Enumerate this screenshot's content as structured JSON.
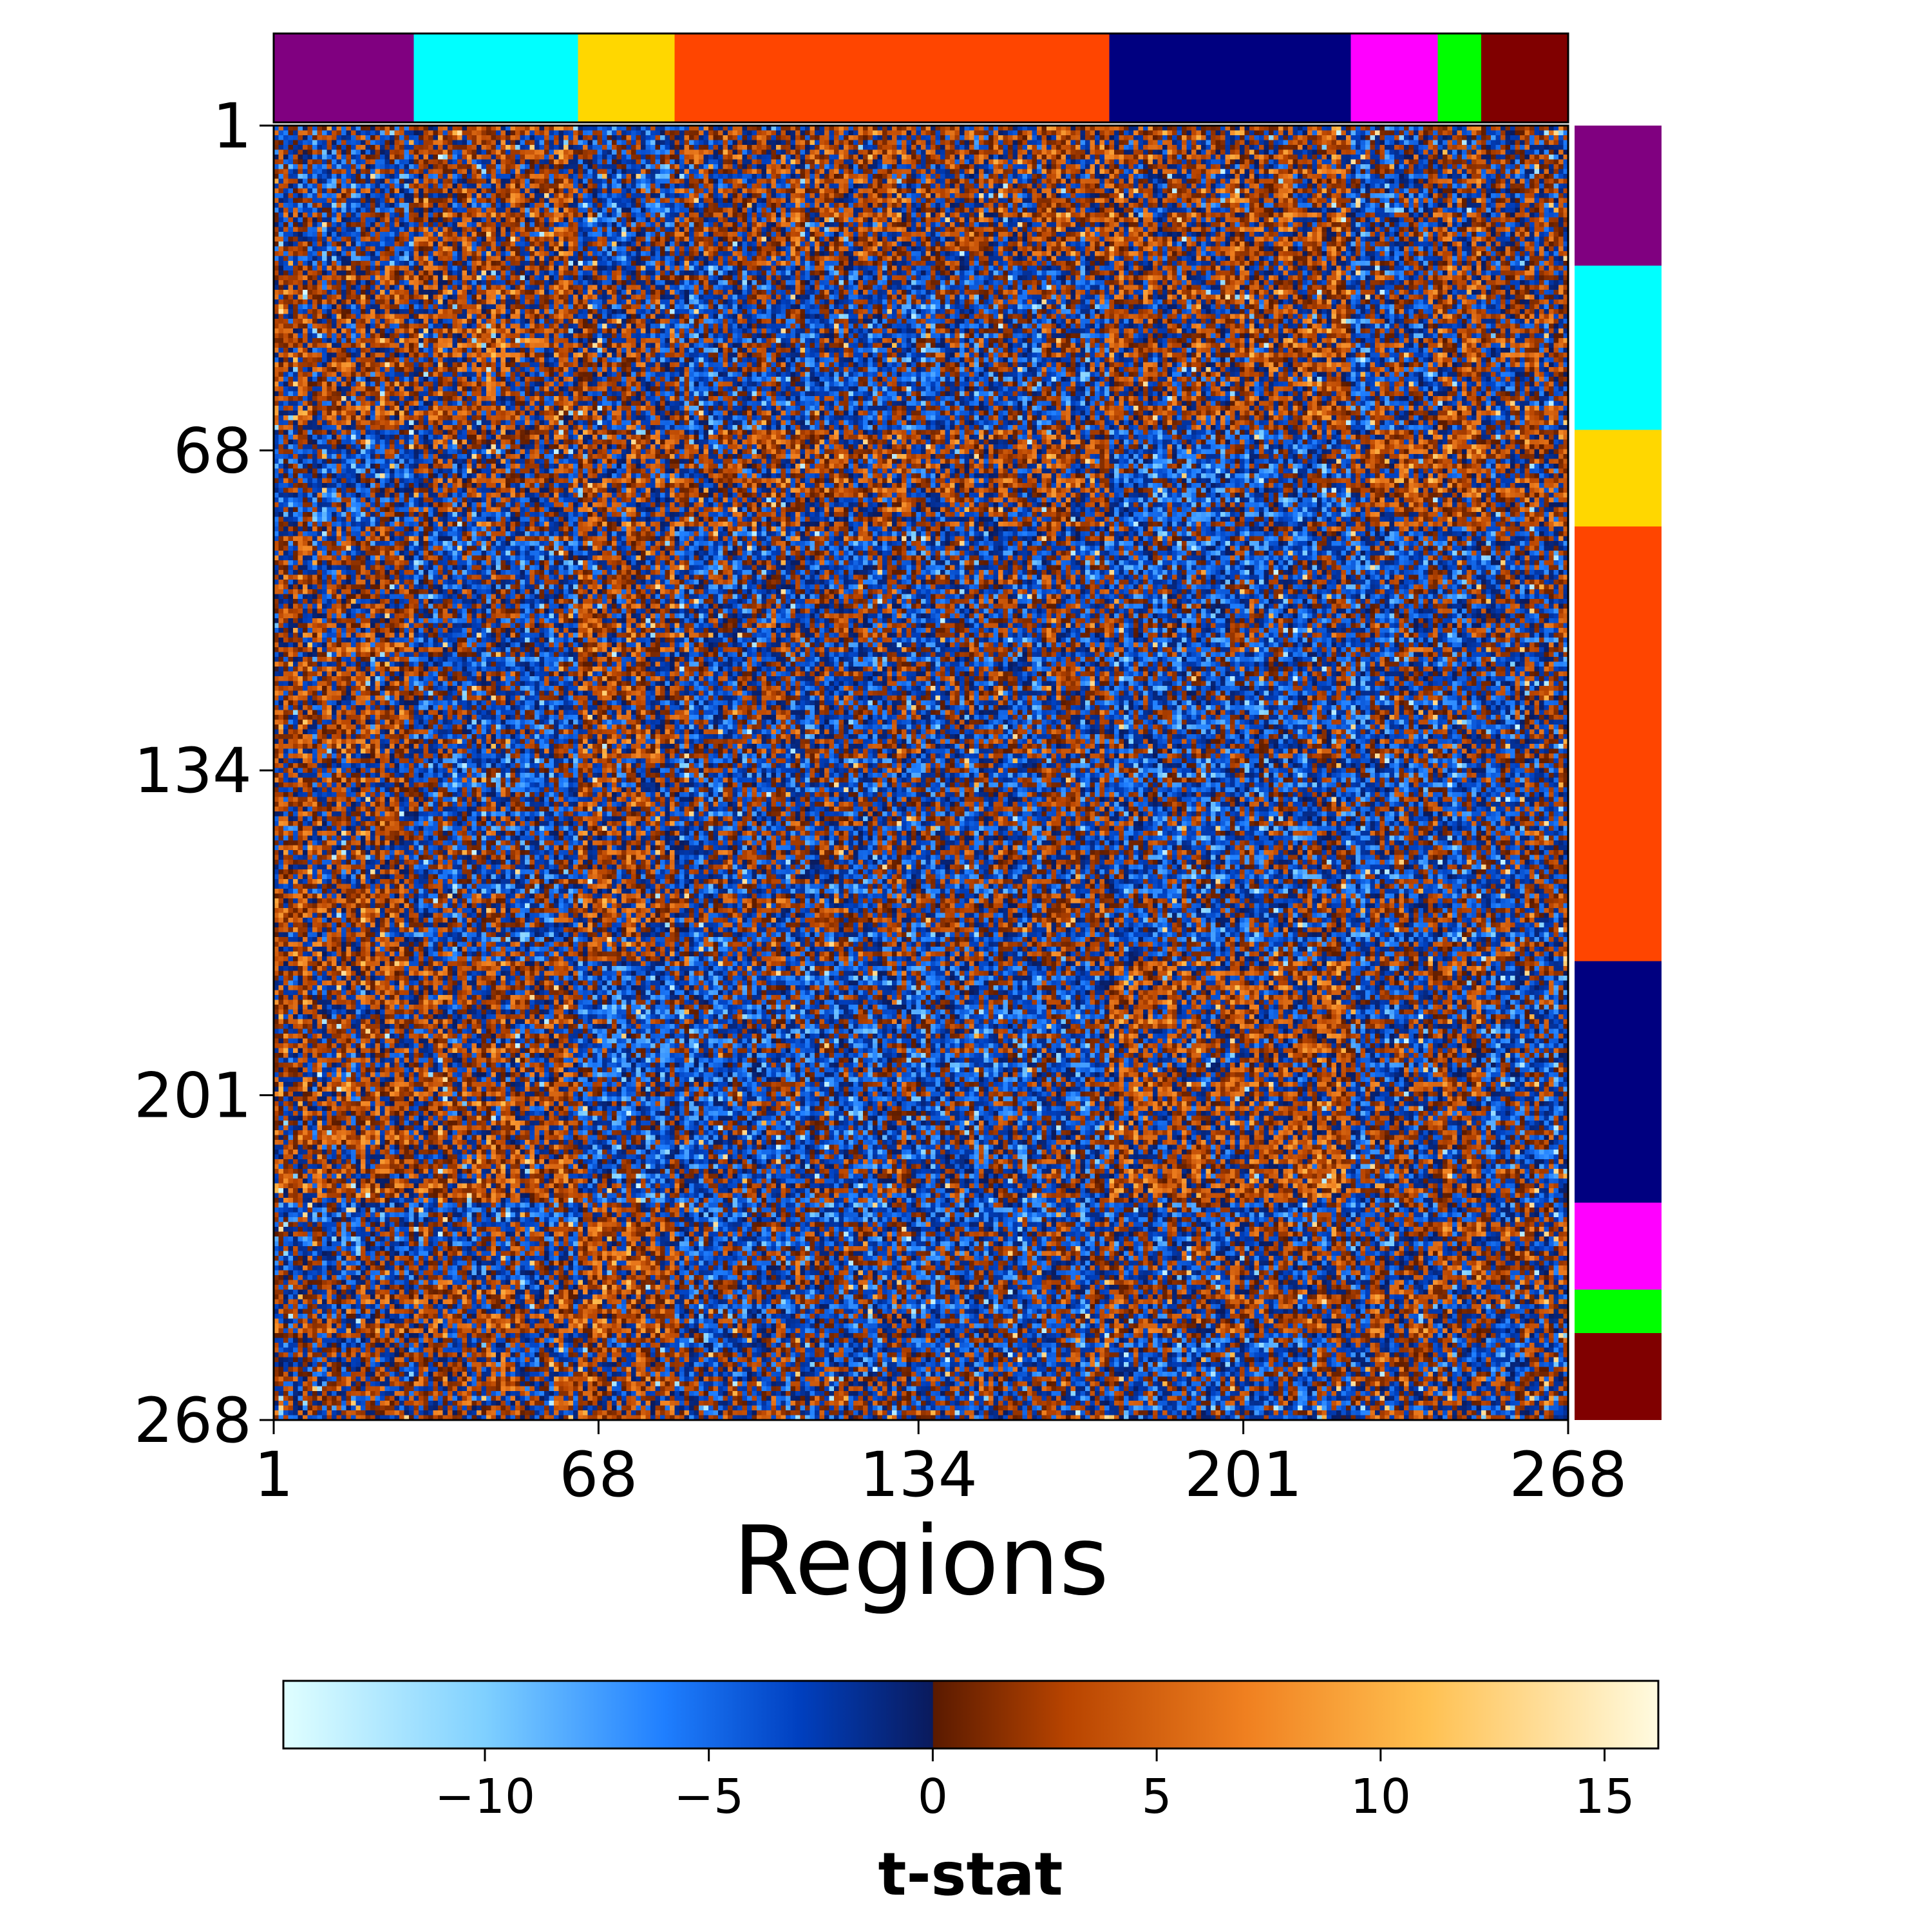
{
  "chart_data": {
    "type": "heatmap",
    "title": "",
    "xlabel": "Regions",
    "ylabel": "",
    "n_regions": 268,
    "x_ticks": [
      1,
      68,
      134,
      201,
      268
    ],
    "y_ticks": [
      1,
      68,
      134,
      201,
      268
    ],
    "x_tick_labels": [
      "1",
      "68",
      "134",
      "201",
      "268"
    ],
    "y_tick_labels": [
      "1",
      "68",
      "134",
      "201",
      "268"
    ],
    "networks": [
      {
        "start": 1,
        "end": 29,
        "color": "#800080"
      },
      {
        "start": 30,
        "end": 63,
        "color": "#00FFFF"
      },
      {
        "start": 64,
        "end": 83,
        "color": "#FFD700"
      },
      {
        "start": 84,
        "end": 173,
        "color": "#FF4500"
      },
      {
        "start": 174,
        "end": 223,
        "color": "#000080"
      },
      {
        "start": 224,
        "end": 241,
        "color": "#FF00FF"
      },
      {
        "start": 242,
        "end": 250,
        "color": "#00FF00"
      },
      {
        "start": 251,
        "end": 268,
        "color": "#800000"
      }
    ],
    "colorbar": {
      "label": "t-stat",
      "vmin": -14.5,
      "vmax": 16.2,
      "ticks": [
        -10,
        -5,
        0,
        5,
        10,
        15
      ],
      "tick_labels": [
        "−10",
        "−5",
        "0",
        "5",
        "10",
        "15"
      ],
      "orientation": "horizontal",
      "placement": "bottom",
      "stops": [
        {
          "value": -14.5,
          "color": "#e0ffff"
        },
        {
          "value": -10,
          "color": "#7fd0ff"
        },
        {
          "value": -6,
          "color": "#1f7fff"
        },
        {
          "value": -3,
          "color": "#0040c0"
        },
        {
          "value": 0,
          "color": "#0a1a5c"
        },
        {
          "value": 0.01,
          "color": "#5a1a00"
        },
        {
          "value": 3,
          "color": "#b84400"
        },
        {
          "value": 7,
          "color": "#f08020"
        },
        {
          "value": 11,
          "color": "#ffc050"
        },
        {
          "value": 16.2,
          "color": "#fffbe0"
        }
      ]
    },
    "matrix_value_range": [
      -14.5,
      16.2
    ],
    "matrix_note": "268x268 symmetric matrix of t-statistics with a strong positive/negative checkerboard texture; individual cell values are not legible."
  }
}
